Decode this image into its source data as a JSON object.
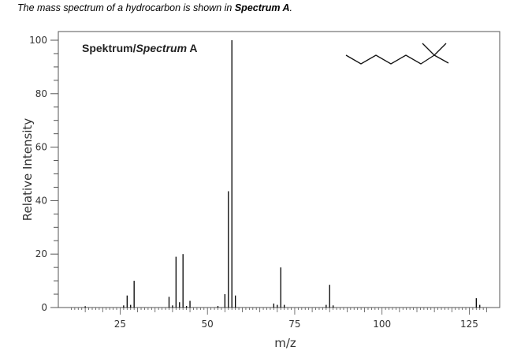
{
  "header": {
    "caption_prefix": "The mass spectrum of a hydrocarbon is shown in",
    "caption_emphasis": "Spectrum A",
    "caption_suffix": "."
  },
  "chart_data": {
    "type": "bar",
    "title_normal": "Spektrum/",
    "title_italic": "Spectrum",
    "title_suffix": " A",
    "xlabel": "m/z",
    "ylabel": "Relative Intensity",
    "xlim": [
      10,
      130
    ],
    "ylim": [
      0,
      100
    ],
    "x_ticks": [
      25,
      50,
      75,
      100,
      125
    ],
    "y_ticks": [
      0,
      20,
      40,
      60,
      80,
      100
    ],
    "grid": false,
    "legend": "none",
    "peaks": [
      {
        "mz": 15,
        "intensity": 0.5
      },
      {
        "mz": 26,
        "intensity": 0.8
      },
      {
        "mz": 27,
        "intensity": 4.5
      },
      {
        "mz": 28,
        "intensity": 1.0
      },
      {
        "mz": 29,
        "intensity": 10.0
      },
      {
        "mz": 39,
        "intensity": 4.0
      },
      {
        "mz": 40,
        "intensity": 0.8
      },
      {
        "mz": 41,
        "intensity": 19.0
      },
      {
        "mz": 42,
        "intensity": 2.0
      },
      {
        "mz": 43,
        "intensity": 20.0
      },
      {
        "mz": 44,
        "intensity": 0.6
      },
      {
        "mz": 45,
        "intensity": 2.5
      },
      {
        "mz": 53,
        "intensity": 0.6
      },
      {
        "mz": 55,
        "intensity": 5.0
      },
      {
        "mz": 56,
        "intensity": 43.5
      },
      {
        "mz": 57,
        "intensity": 100.0
      },
      {
        "mz": 58,
        "intensity": 4.5
      },
      {
        "mz": 69,
        "intensity": 1.5
      },
      {
        "mz": 70,
        "intensity": 1.0
      },
      {
        "mz": 71,
        "intensity": 15.0
      },
      {
        "mz": 72,
        "intensity": 1.0
      },
      {
        "mz": 84,
        "intensity": 1.0
      },
      {
        "mz": 85,
        "intensity": 8.5
      },
      {
        "mz": 86,
        "intensity": 0.8
      },
      {
        "mz": 127,
        "intensity": 3.5
      },
      {
        "mz": 128,
        "intensity": 1.0
      }
    ]
  }
}
